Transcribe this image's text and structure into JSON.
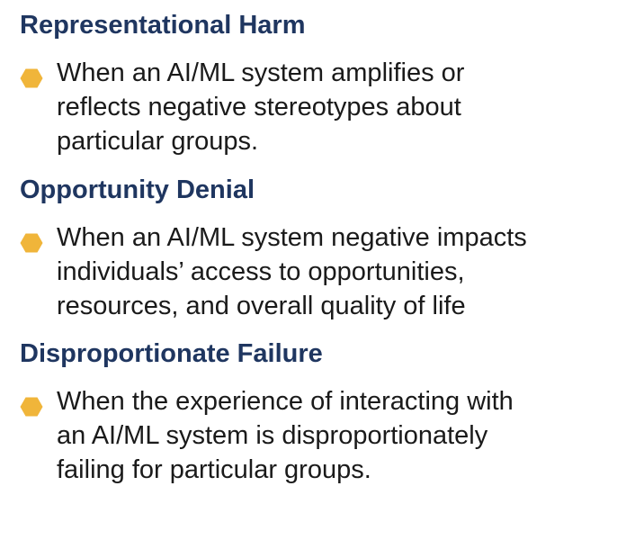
{
  "accent_color": "#f0b53a",
  "heading_color": "#1f3660",
  "sections": [
    {
      "heading": "Representational Harm",
      "bullet_icon": "hexagon-bullet-icon",
      "text": "When an AI/ML system amplifies or\nreflects negative stereotypes about\nparticular groups."
    },
    {
      "heading": "Opportunity Denial",
      "bullet_icon": "hexagon-bullet-icon",
      "text": "When an AI/ML system negative impacts\nindividuals’ access to opportunities,\nresources, and overall quality of life"
    },
    {
      "heading": "Disproportionate  Failure",
      "bullet_icon": "hexagon-bullet-icon",
      "text": "When the experience of interacting with\nan AI/ML system is disproportionately\nfailing for particular groups."
    }
  ]
}
